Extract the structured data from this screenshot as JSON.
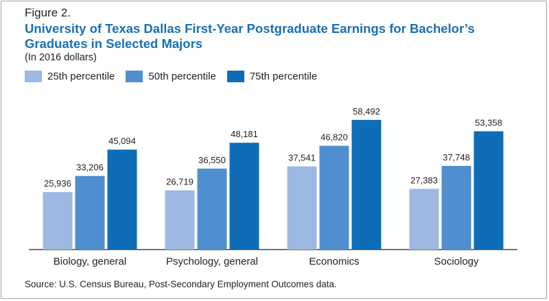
{
  "figure_label": "Figure 2.",
  "source": "Source: U.S. Census Bureau, Post-Secondary Employment Outcomes data.",
  "colors": {
    "title": "#1a6fb4",
    "p25": "#9db8e1",
    "p50": "#4f8fcf",
    "p75": "#0f6cb6",
    "axis": "#222222",
    "border": "#9aa4ae"
  },
  "chart_data": {
    "type": "bar",
    "title": "University of Texas Dallas First-Year Postgraduate Earnings for Bachelor’s Graduates in Selected Majors",
    "subtitle": "(In 2016 dollars)",
    "xlabel": "",
    "ylabel": "",
    "ylim": [
      0,
      60000
    ],
    "grid": false,
    "legend_position": "top-left",
    "categories": [
      "Biology, general",
      "Psychology, general",
      "Economics",
      "Sociology"
    ],
    "series": [
      {
        "name": "25th percentile",
        "values": [
          25936,
          26719,
          37541,
          27383
        ],
        "labels": [
          "25,936",
          "26,719",
          "37,541",
          "27,383"
        ]
      },
      {
        "name": "50th percentile",
        "values": [
          33206,
          36550,
          46820,
          37748
        ],
        "labels": [
          "33,206",
          "36,550",
          "46,820",
          "37,748"
        ]
      },
      {
        "name": "75th percentile",
        "values": [
          45094,
          48181,
          58492,
          53358
        ],
        "labels": [
          "45,094",
          "48,181",
          "58,492",
          "53,358"
        ]
      }
    ]
  }
}
